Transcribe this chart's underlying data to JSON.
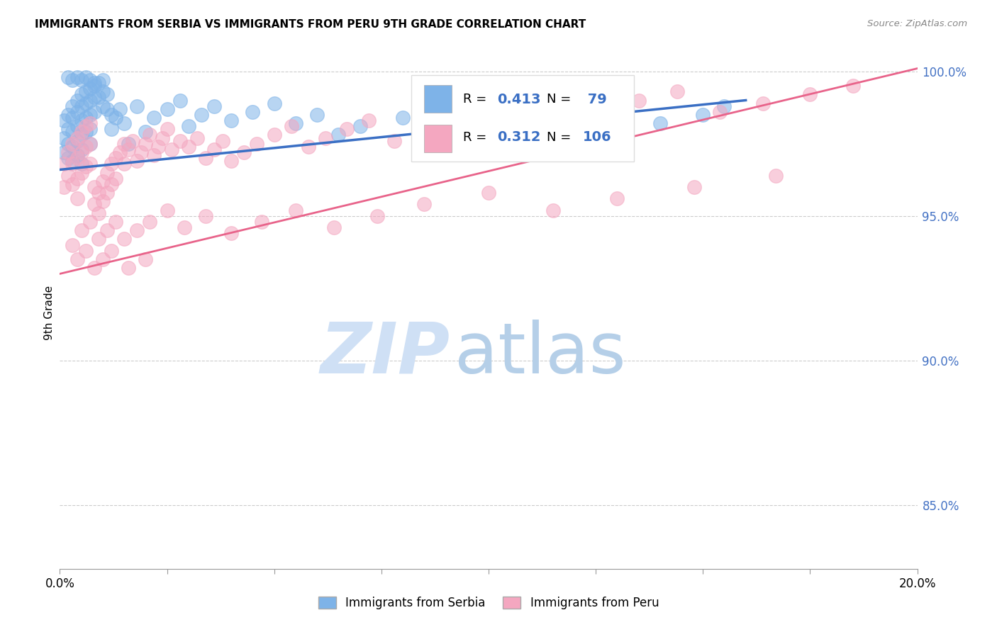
{
  "title": "IMMIGRANTS FROM SERBIA VS IMMIGRANTS FROM PERU 9TH GRADE CORRELATION CHART",
  "source": "Source: ZipAtlas.com",
  "ylabel": "9th Grade",
  "serbia_color": "#7EB3E8",
  "peru_color": "#F4A7C0",
  "serbia_line_color": "#3A6FC4",
  "peru_line_color": "#E8638A",
  "serbia_line_x": [
    0.0,
    0.16
  ],
  "serbia_line_y": [
    0.966,
    0.99
  ],
  "peru_line_x": [
    0.0,
    0.2
  ],
  "peru_line_y": [
    0.93,
    1.001
  ],
  "xlim": [
    0.0,
    0.2
  ],
  "ylim": [
    0.828,
    1.005
  ],
  "yticks": [
    0.85,
    0.9,
    0.95,
    1.0
  ],
  "ytick_labels": [
    "85.0%",
    "90.0%",
    "95.0%",
    "100.0%"
  ],
  "serbia_x": [
    0.001,
    0.001,
    0.001,
    0.002,
    0.002,
    0.002,
    0.002,
    0.003,
    0.003,
    0.003,
    0.003,
    0.003,
    0.004,
    0.004,
    0.004,
    0.004,
    0.004,
    0.005,
    0.005,
    0.005,
    0.005,
    0.005,
    0.005,
    0.006,
    0.006,
    0.006,
    0.006,
    0.007,
    0.007,
    0.007,
    0.007,
    0.007,
    0.008,
    0.008,
    0.008,
    0.009,
    0.009,
    0.01,
    0.01,
    0.01,
    0.011,
    0.011,
    0.012,
    0.012,
    0.013,
    0.014,
    0.015,
    0.016,
    0.018,
    0.02,
    0.022,
    0.025,
    0.028,
    0.03,
    0.033,
    0.036,
    0.04,
    0.045,
    0.05,
    0.055,
    0.06,
    0.065,
    0.07,
    0.08,
    0.09,
    0.1,
    0.11,
    0.12,
    0.13,
    0.14,
    0.15,
    0.155,
    0.002,
    0.003,
    0.004,
    0.005,
    0.006,
    0.007,
    0.008
  ],
  "serbia_y": [
    0.983,
    0.977,
    0.972,
    0.985,
    0.98,
    0.975,
    0.97,
    0.988,
    0.984,
    0.979,
    0.974,
    0.969,
    0.99,
    0.986,
    0.981,
    0.976,
    0.971,
    0.992,
    0.988,
    0.983,
    0.978,
    0.973,
    0.968,
    0.993,
    0.989,
    0.984,
    0.979,
    0.994,
    0.99,
    0.985,
    0.98,
    0.975,
    0.995,
    0.991,
    0.986,
    0.996,
    0.991,
    0.997,
    0.993,
    0.988,
    0.992,
    0.987,
    0.985,
    0.98,
    0.984,
    0.987,
    0.982,
    0.975,
    0.988,
    0.979,
    0.984,
    0.987,
    0.99,
    0.981,
    0.985,
    0.988,
    0.983,
    0.986,
    0.989,
    0.982,
    0.985,
    0.978,
    0.981,
    0.984,
    0.987,
    0.98,
    0.983,
    0.986,
    0.979,
    0.982,
    0.985,
    0.988,
    0.998,
    0.997,
    0.998,
    0.997,
    0.998,
    0.997,
    0.996
  ],
  "peru_x": [
    0.001,
    0.001,
    0.002,
    0.002,
    0.003,
    0.003,
    0.003,
    0.004,
    0.004,
    0.004,
    0.004,
    0.005,
    0.005,
    0.005,
    0.006,
    0.006,
    0.006,
    0.007,
    0.007,
    0.007,
    0.008,
    0.008,
    0.009,
    0.009,
    0.01,
    0.01,
    0.011,
    0.011,
    0.012,
    0.012,
    0.013,
    0.013,
    0.014,
    0.015,
    0.015,
    0.016,
    0.017,
    0.018,
    0.019,
    0.02,
    0.021,
    0.022,
    0.023,
    0.024,
    0.025,
    0.026,
    0.028,
    0.03,
    0.032,
    0.034,
    0.036,
    0.038,
    0.04,
    0.043,
    0.046,
    0.05,
    0.054,
    0.058,
    0.062,
    0.067,
    0.072,
    0.078,
    0.084,
    0.09,
    0.096,
    0.103,
    0.11,
    0.118,
    0.126,
    0.135,
    0.144,
    0.154,
    0.164,
    0.175,
    0.185,
    0.003,
    0.005,
    0.007,
    0.009,
    0.011,
    0.013,
    0.015,
    0.018,
    0.021,
    0.025,
    0.029,
    0.034,
    0.04,
    0.047,
    0.055,
    0.064,
    0.074,
    0.085,
    0.1,
    0.115,
    0.13,
    0.148,
    0.167,
    0.004,
    0.006,
    0.008,
    0.01,
    0.012,
    0.016,
    0.02
  ],
  "peru_y": [
    0.968,
    0.96,
    0.972,
    0.964,
    0.975,
    0.968,
    0.961,
    0.977,
    0.97,
    0.963,
    0.956,
    0.979,
    0.972,
    0.965,
    0.981,
    0.974,
    0.967,
    0.982,
    0.975,
    0.968,
    0.96,
    0.954,
    0.958,
    0.951,
    0.962,
    0.955,
    0.965,
    0.958,
    0.968,
    0.961,
    0.97,
    0.963,
    0.972,
    0.975,
    0.968,
    0.973,
    0.976,
    0.969,
    0.972,
    0.975,
    0.978,
    0.971,
    0.974,
    0.977,
    0.98,
    0.973,
    0.976,
    0.974,
    0.977,
    0.97,
    0.973,
    0.976,
    0.969,
    0.972,
    0.975,
    0.978,
    0.981,
    0.974,
    0.977,
    0.98,
    0.983,
    0.976,
    0.979,
    0.982,
    0.985,
    0.988,
    0.981,
    0.984,
    0.987,
    0.99,
    0.993,
    0.986,
    0.989,
    0.992,
    0.995,
    0.94,
    0.945,
    0.948,
    0.942,
    0.945,
    0.948,
    0.942,
    0.945,
    0.948,
    0.952,
    0.946,
    0.95,
    0.944,
    0.948,
    0.952,
    0.946,
    0.95,
    0.954,
    0.958,
    0.952,
    0.956,
    0.96,
    0.964,
    0.935,
    0.938,
    0.932,
    0.935,
    0.938,
    0.932,
    0.935
  ]
}
